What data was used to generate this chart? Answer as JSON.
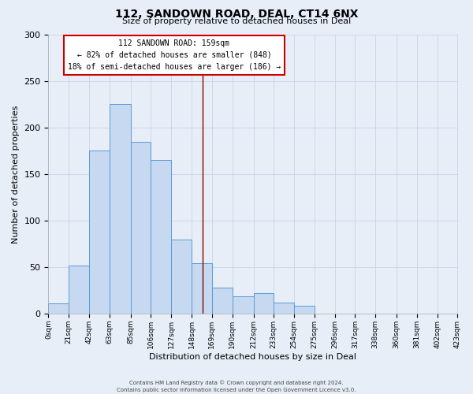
{
  "title": "112, SANDOWN ROAD, DEAL, CT14 6NX",
  "subtitle": "Size of property relative to detached houses in Deal",
  "xlabel": "Distribution of detached houses by size in Deal",
  "ylabel": "Number of detached properties",
  "bar_color": "#c6d9f0",
  "bar_edge_color": "#5b9bd5",
  "bin_edges": [
    0,
    21,
    42,
    63,
    85,
    106,
    127,
    148,
    169,
    190,
    212,
    233,
    254,
    275,
    296,
    317,
    338,
    360,
    381,
    402,
    423
  ],
  "bin_labels": [
    "0sqm",
    "21sqm",
    "42sqm",
    "63sqm",
    "85sqm",
    "106sqm",
    "127sqm",
    "148sqm",
    "169sqm",
    "190sqm",
    "212sqm",
    "233sqm",
    "254sqm",
    "275sqm",
    "296sqm",
    "317sqm",
    "338sqm",
    "360sqm",
    "381sqm",
    "402sqm",
    "423sqm"
  ],
  "counts": [
    11,
    52,
    175,
    225,
    185,
    165,
    80,
    54,
    28,
    19,
    22,
    12,
    8,
    0,
    0,
    0,
    0,
    0,
    0,
    0
  ],
  "ylim": [
    0,
    300
  ],
  "yticks": [
    0,
    50,
    100,
    150,
    200,
    250,
    300
  ],
  "vline_x": 159,
  "vline_color": "#8b0000",
  "annotation_title": "112 SANDOWN ROAD: 159sqm",
  "annotation_line1": "← 82% of detached houses are smaller (848)",
  "annotation_line2": "18% of semi-detached houses are larger (186) →",
  "annotation_box_color": "#ffffff",
  "annotation_box_edge": "#cc0000",
  "footer1": "Contains HM Land Registry data © Crown copyright and database right 2024.",
  "footer2": "Contains public sector information licensed under the Open Government Licence v3.0.",
  "bg_color": "#e8eef8",
  "grid_color": "#c8d4e8"
}
